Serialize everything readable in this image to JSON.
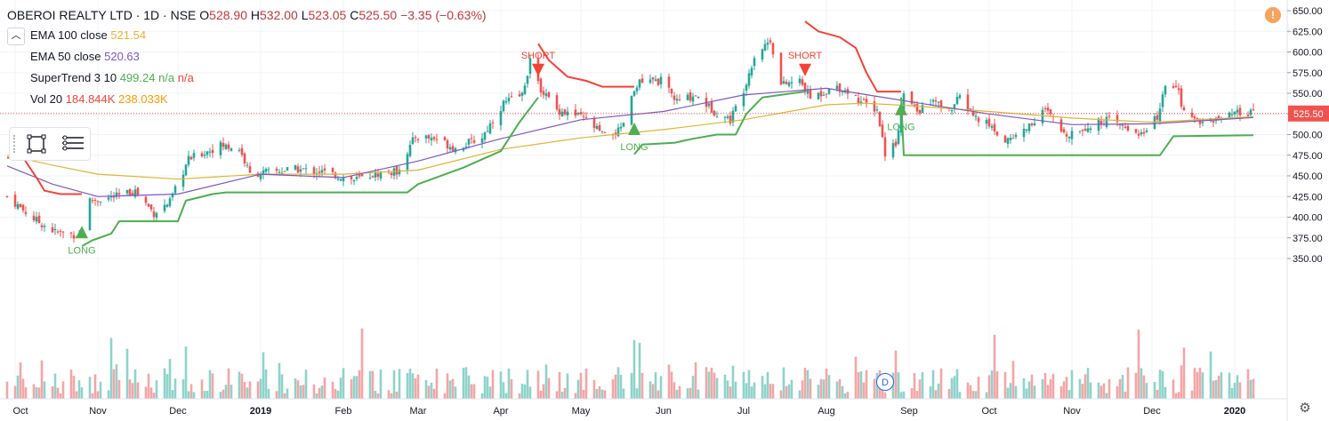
{
  "header": {
    "symbol": "OBEROI REALTY LTD · 1D · NSE",
    "ohlc": [
      {
        "k": "O",
        "v": "528.90"
      },
      {
        "k": "H",
        "v": "532.00"
      },
      {
        "k": "L",
        "v": "523.05"
      },
      {
        "k": "C",
        "v": "525.50"
      },
      {
        "k": "",
        "v": "−3.35 (−0.63%)"
      }
    ]
  },
  "indicators": [
    {
      "name": "EMA 100 close",
      "values": [
        "521.54"
      ],
      "colors": [
        "#e0b433"
      ]
    },
    {
      "name": "EMA 50 close",
      "values": [
        "520.63"
      ],
      "colors": [
        "#7e57c2"
      ]
    },
    {
      "name": "SuperTrend 3 10",
      "values": [
        "499.24",
        "n/a",
        "n/a"
      ],
      "colors": [
        "#4caf50",
        "#4caf50",
        "#f44336"
      ]
    },
    {
      "name": "Vol 20",
      "values": [
        "184.844K",
        "238.033K"
      ],
      "colors": [
        "#f44336",
        "#ff9800"
      ]
    }
  ],
  "colors": {
    "up": "#26a69a",
    "down": "#ef5350",
    "vol_up": "#8fd3cb",
    "vol_down": "#f4a6a6",
    "ema100": "#e0b433",
    "ema50": "#7e57c2",
    "st_up": "#4caf50",
    "st_down": "#f44336",
    "price_badge": "#ef5350",
    "grid": "#f0f3fa"
  },
  "price_badge": "525.50",
  "alert_icon": "!",
  "dividend_badge": "D",
  "signals": [
    {
      "label": "LONG",
      "date": "2018-10-26",
      "price": 383
    },
    {
      "label": "SHORT",
      "date": "2019-04-15",
      "price": 575
    },
    {
      "label": "LONG",
      "date": "2019-05-21",
      "price": 508
    },
    {
      "label": "SHORT",
      "date": "2019-07-24",
      "price": 575
    },
    {
      "label": "LONG",
      "date": "2019-08-29",
      "price": 532
    }
  ],
  "chart_data": {
    "type": "candlestick",
    "x_tick_labels": [
      "Oct",
      "Nov",
      "Dec",
      "2019",
      "Feb",
      "Mar",
      "Apr",
      "May",
      "Jun",
      "Jul",
      "Aug",
      "Sep",
      "Oct",
      "Nov",
      "Dec",
      "2020"
    ],
    "x_tick_dates": [
      "2018-10-01",
      "2018-11-01",
      "2018-12-01",
      "2019-01-01",
      "2019-02-01",
      "2019-03-01",
      "2019-04-01",
      "2019-05-01",
      "2019-06-01",
      "2019-07-01",
      "2019-08-01",
      "2019-09-01",
      "2019-10-01",
      "2019-11-01",
      "2019-12-01",
      "2020-01-01"
    ],
    "y_tick_labels": [
      "650.00",
      "625.00",
      "600.00",
      "575.00",
      "550.00",
      "525.00",
      "500.00",
      "475.00",
      "450.00",
      "425.00",
      "400.00",
      "375.00",
      "350.00"
    ],
    "y_ticks": [
      650,
      625,
      600,
      575,
      550,
      525,
      500,
      475,
      450,
      425,
      400,
      375,
      350
    ],
    "ylim": [
      340,
      660
    ],
    "x_range": [
      "2018-09-28",
      "2020-01-10"
    ],
    "last_price": 525.5,
    "close_anchors": [
      {
        "date": "2018-09-28",
        "close": 425
      },
      {
        "date": "2018-10-08",
        "close": 398
      },
      {
        "date": "2018-10-16",
        "close": 382
      },
      {
        "date": "2018-10-25",
        "close": 378
      },
      {
        "date": "2018-10-29",
        "close": 420
      },
      {
        "date": "2018-11-08",
        "close": 425
      },
      {
        "date": "2018-11-15",
        "close": 432
      },
      {
        "date": "2018-11-22",
        "close": 405
      },
      {
        "date": "2018-11-28",
        "close": 418
      },
      {
        "date": "2018-12-05",
        "close": 470
      },
      {
        "date": "2018-12-17",
        "close": 487
      },
      {
        "date": "2018-12-24",
        "close": 483
      },
      {
        "date": "2018-12-28",
        "close": 452
      },
      {
        "date": "2019-01-14",
        "close": 458
      },
      {
        "date": "2019-01-24",
        "close": 455
      },
      {
        "date": "2019-02-05",
        "close": 445
      },
      {
        "date": "2019-02-13",
        "close": 452
      },
      {
        "date": "2019-02-21",
        "close": 455
      },
      {
        "date": "2019-02-28",
        "close": 498
      },
      {
        "date": "2019-03-08",
        "close": 495
      },
      {
        "date": "2019-03-15",
        "close": 483
      },
      {
        "date": "2019-03-25",
        "close": 497
      },
      {
        "date": "2019-04-02",
        "close": 538
      },
      {
        "date": "2019-04-09",
        "close": 548
      },
      {
        "date": "2019-04-12",
        "close": 590
      },
      {
        "date": "2019-04-15",
        "close": 560
      },
      {
        "date": "2019-04-22",
        "close": 530
      },
      {
        "date": "2019-05-02",
        "close": 520
      },
      {
        "date": "2019-05-10",
        "close": 498
      },
      {
        "date": "2019-05-16",
        "close": 505
      },
      {
        "date": "2019-05-22",
        "close": 562
      },
      {
        "date": "2019-05-31",
        "close": 565
      },
      {
        "date": "2019-06-06",
        "close": 540
      },
      {
        "date": "2019-06-13",
        "close": 548
      },
      {
        "date": "2019-06-20",
        "close": 528
      },
      {
        "date": "2019-06-26",
        "close": 518
      },
      {
        "date": "2019-07-01",
        "close": 555
      },
      {
        "date": "2019-07-05",
        "close": 595
      },
      {
        "date": "2019-07-11",
        "close": 615
      },
      {
        "date": "2019-07-15",
        "close": 560
      },
      {
        "date": "2019-07-22",
        "close": 565
      },
      {
        "date": "2019-07-26",
        "close": 545
      },
      {
        "date": "2019-08-05",
        "close": 558
      },
      {
        "date": "2019-08-09",
        "close": 552
      },
      {
        "date": "2019-08-14",
        "close": 540
      },
      {
        "date": "2019-08-20",
        "close": 530
      },
      {
        "date": "2019-08-23",
        "close": 478
      },
      {
        "date": "2019-08-27",
        "close": 490
      },
      {
        "date": "2019-08-30",
        "close": 548
      },
      {
        "date": "2019-09-04",
        "close": 528
      },
      {
        "date": "2019-09-10",
        "close": 540
      },
      {
        "date": "2019-09-16",
        "close": 528
      },
      {
        "date": "2019-09-20",
        "close": 545
      },
      {
        "date": "2019-09-26",
        "close": 520
      },
      {
        "date": "2019-10-01",
        "close": 512
      },
      {
        "date": "2019-10-07",
        "close": 492
      },
      {
        "date": "2019-10-14",
        "close": 505
      },
      {
        "date": "2019-10-22",
        "close": 530
      },
      {
        "date": "2019-10-29",
        "close": 500
      },
      {
        "date": "2019-11-07",
        "close": 510
      },
      {
        "date": "2019-11-14",
        "close": 518
      },
      {
        "date": "2019-11-21",
        "close": 508
      },
      {
        "date": "2019-11-28",
        "close": 500
      },
      {
        "date": "2019-12-03",
        "close": 522
      },
      {
        "date": "2019-12-06",
        "close": 555
      },
      {
        "date": "2019-12-10",
        "close": 562
      },
      {
        "date": "2019-12-13",
        "close": 525
      },
      {
        "date": "2019-12-19",
        "close": 517
      },
      {
        "date": "2019-12-26",
        "close": 518
      },
      {
        "date": "2020-01-02",
        "close": 525
      },
      {
        "date": "2020-01-08",
        "close": 525.5
      }
    ],
    "ema100": [
      {
        "date": "2018-09-28",
        "value": 475
      },
      {
        "date": "2018-10-15",
        "value": 463
      },
      {
        "date": "2018-11-01",
        "value": 452
      },
      {
        "date": "2018-12-01",
        "value": 446
      },
      {
        "date": "2019-01-01",
        "value": 452
      },
      {
        "date": "2019-02-01",
        "value": 452
      },
      {
        "date": "2019-03-01",
        "value": 457
      },
      {
        "date": "2019-04-01",
        "value": 482
      },
      {
        "date": "2019-05-01",
        "value": 496
      },
      {
        "date": "2019-06-01",
        "value": 506
      },
      {
        "date": "2019-07-01",
        "value": 518
      },
      {
        "date": "2019-08-01",
        "value": 536
      },
      {
        "date": "2019-08-15",
        "value": 538
      },
      {
        "date": "2019-09-01",
        "value": 535
      },
      {
        "date": "2019-10-01",
        "value": 528
      },
      {
        "date": "2019-11-01",
        "value": 520
      },
      {
        "date": "2019-12-01",
        "value": 515
      },
      {
        "date": "2020-01-08",
        "value": 521.54
      }
    ],
    "ema50": [
      {
        "date": "2018-09-28",
        "value": 462
      },
      {
        "date": "2018-10-15",
        "value": 440
      },
      {
        "date": "2018-11-01",
        "value": 425
      },
      {
        "date": "2018-12-01",
        "value": 428
      },
      {
        "date": "2019-01-01",
        "value": 452
      },
      {
        "date": "2019-02-01",
        "value": 448
      },
      {
        "date": "2019-03-01",
        "value": 468
      },
      {
        "date": "2019-04-01",
        "value": 495
      },
      {
        "date": "2019-05-01",
        "value": 518
      },
      {
        "date": "2019-06-01",
        "value": 528
      },
      {
        "date": "2019-07-01",
        "value": 548
      },
      {
        "date": "2019-08-01",
        "value": 556
      },
      {
        "date": "2019-09-01",
        "value": 540
      },
      {
        "date": "2019-10-01",
        "value": 525
      },
      {
        "date": "2019-11-01",
        "value": 512
      },
      {
        "date": "2019-12-01",
        "value": 513
      },
      {
        "date": "2020-01-08",
        "value": 520.63
      }
    ],
    "supertrend": [
      {
        "trend": "down",
        "points": [
          {
            "date": "2018-09-28",
            "value": 472
          },
          {
            "date": "2018-10-04",
            "value": 472
          },
          {
            "date": "2018-10-09",
            "value": 448
          },
          {
            "date": "2018-10-12",
            "value": 432
          },
          {
            "date": "2018-10-18",
            "value": 428
          },
          {
            "date": "2018-10-26",
            "value": 428
          }
        ]
      },
      {
        "trend": "up",
        "points": [
          {
            "date": "2018-10-26",
            "value": 365
          },
          {
            "date": "2018-10-30",
            "value": 372
          },
          {
            "date": "2018-11-06",
            "value": 380
          },
          {
            "date": "2018-11-09",
            "value": 395
          },
          {
            "date": "2018-12-01",
            "value": 395
          },
          {
            "date": "2018-12-04",
            "value": 420
          },
          {
            "date": "2018-12-14",
            "value": 428
          },
          {
            "date": "2018-12-19",
            "value": 430
          },
          {
            "date": "2019-02-25",
            "value": 430
          },
          {
            "date": "2019-03-01",
            "value": 440
          },
          {
            "date": "2019-03-18",
            "value": 460
          },
          {
            "date": "2019-04-01",
            "value": 480
          },
          {
            "date": "2019-04-08",
            "value": 515
          },
          {
            "date": "2019-04-12",
            "value": 532
          },
          {
            "date": "2019-04-15",
            "value": 545
          }
        ]
      },
      {
        "trend": "down",
        "points": [
          {
            "date": "2019-04-15",
            "value": 610
          },
          {
            "date": "2019-04-19",
            "value": 590
          },
          {
            "date": "2019-04-26",
            "value": 570
          },
          {
            "date": "2019-05-03",
            "value": 565
          },
          {
            "date": "2019-05-09",
            "value": 558
          },
          {
            "date": "2019-05-21",
            "value": 558
          }
        ]
      },
      {
        "trend": "up",
        "points": [
          {
            "date": "2019-05-21",
            "value": 476
          },
          {
            "date": "2019-05-24",
            "value": 488
          },
          {
            "date": "2019-06-05",
            "value": 490
          },
          {
            "date": "2019-06-12",
            "value": 495
          },
          {
            "date": "2019-06-21",
            "value": 500
          },
          {
            "date": "2019-06-28",
            "value": 500
          },
          {
            "date": "2019-07-02",
            "value": 525
          },
          {
            "date": "2019-07-08",
            "value": 545
          },
          {
            "date": "2019-07-24",
            "value": 552
          }
        ]
      },
      {
        "trend": "down",
        "points": [
          {
            "date": "2019-07-24",
            "value": 637
          },
          {
            "date": "2019-07-29",
            "value": 625
          },
          {
            "date": "2019-08-06",
            "value": 618
          },
          {
            "date": "2019-08-12",
            "value": 605
          },
          {
            "date": "2019-08-16",
            "value": 575
          },
          {
            "date": "2019-08-20",
            "value": 552
          },
          {
            "date": "2019-08-29",
            "value": 552
          }
        ]
      },
      {
        "trend": "up",
        "points": [
          {
            "date": "2019-08-29",
            "value": 545
          },
          {
            "date": "2019-08-30",
            "value": 475
          },
          {
            "date": "2019-12-04",
            "value": 475
          },
          {
            "date": "2019-12-09",
            "value": 498
          },
          {
            "date": "2020-01-08",
            "value": 499.24
          }
        ]
      }
    ],
    "volume_legend": {
      "volume": "184.844K",
      "ma20": "238.033K"
    }
  }
}
